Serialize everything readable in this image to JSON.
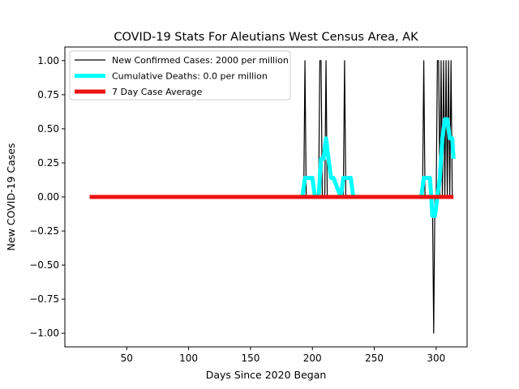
{
  "chart_data": {
    "type": "line",
    "title": "COVID-19 Stats For Aleutians West Census Area, AK",
    "xlabel": "Days Since 2020 Began",
    "ylabel": "New COVID-19 Cases",
    "xlim": [
      0,
      325
    ],
    "ylim": [
      -1.1,
      1.1
    ],
    "xticks": [
      50,
      100,
      150,
      200,
      250,
      300
    ],
    "yticks": [
      -1.0,
      -0.75,
      -0.5,
      -0.25,
      0.0,
      0.25,
      0.5,
      0.75,
      1.0
    ],
    "ytick_labels": [
      "−1.00",
      "−0.75",
      "−0.50",
      "−0.25",
      "0.00",
      "0.25",
      "0.50",
      "0.75",
      "1.00"
    ],
    "grid": false,
    "legend_position": "top-left",
    "series": [
      {
        "name": "New Confirmed Cases: 2000 per million",
        "color": "#000000",
        "x": [
          20,
          193,
          194,
          195,
          205,
          206,
          207,
          208,
          210,
          211,
          212,
          225,
          226,
          227,
          289,
          290,
          291,
          297,
          298,
          299,
          300,
          301,
          302,
          303,
          304,
          305,
          306,
          307,
          308,
          309,
          310,
          311,
          312,
          313
        ],
        "y": [
          0,
          0,
          1,
          0,
          0,
          1,
          1,
          0,
          0,
          1,
          0,
          0,
          1,
          0,
          0,
          1,
          0,
          0,
          -1,
          0,
          0,
          1,
          1,
          0,
          1,
          0,
          1,
          0,
          1,
          0,
          1,
          0,
          1,
          0
        ]
      },
      {
        "name": "Cumulative Deaths: 0.0 per million",
        "color": "#00ffff",
        "x": [
          20,
          192,
          194,
          200,
          202,
          205,
          207,
          209,
          211,
          213,
          215,
          217,
          223,
          225,
          231,
          233,
          288,
          290,
          295,
          297,
          299,
          301,
          303,
          305,
          307,
          309,
          311,
          313,
          314
        ],
        "y": [
          0,
          0,
          0.14,
          0.14,
          0,
          0,
          0.28,
          0.28,
          0.43,
          0.28,
          0.14,
          0.14,
          0,
          0.14,
          0.14,
          0,
          0,
          0.14,
          0.14,
          -0.14,
          -0.14,
          0,
          0.14,
          0.43,
          0.57,
          0.57,
          0.43,
          0.43,
          0.28
        ]
      },
      {
        "name": "7 Day Case Average",
        "color": "#ee1111",
        "x": [
          20,
          314
        ],
        "y": [
          0,
          0
        ]
      }
    ]
  }
}
